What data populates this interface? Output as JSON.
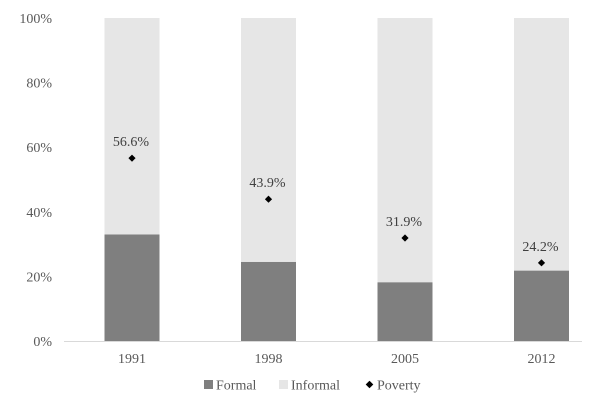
{
  "chart_data": {
    "type": "bar",
    "stacked": true,
    "categories": [
      "1991",
      "1998",
      "2005",
      "2012"
    ],
    "series": [
      {
        "name": "Formal",
        "kind": "bar",
        "color": "#7f7f7f",
        "values": [
          33,
          24.5,
          18.2,
          21.8
        ]
      },
      {
        "name": "Informal",
        "kind": "bar",
        "color": "#e6e6e6",
        "values": [
          67,
          75.5,
          81.8,
          78.2
        ]
      },
      {
        "name": "Poverty",
        "kind": "marker",
        "color": "#000000",
        "values": [
          56.6,
          43.9,
          31.9,
          24.2
        ]
      }
    ],
    "data_labels": [
      "56.6%",
      "43.9%",
      "31.9%",
      "24.2%"
    ],
    "y_ticks": [
      "0%",
      "20%",
      "40%",
      "60%",
      "80%",
      "100%"
    ],
    "y_tick_values": [
      0,
      20,
      40,
      60,
      80,
      100
    ],
    "ylim": [
      0,
      100
    ],
    "grid": false,
    "legend_position": "bottom"
  }
}
